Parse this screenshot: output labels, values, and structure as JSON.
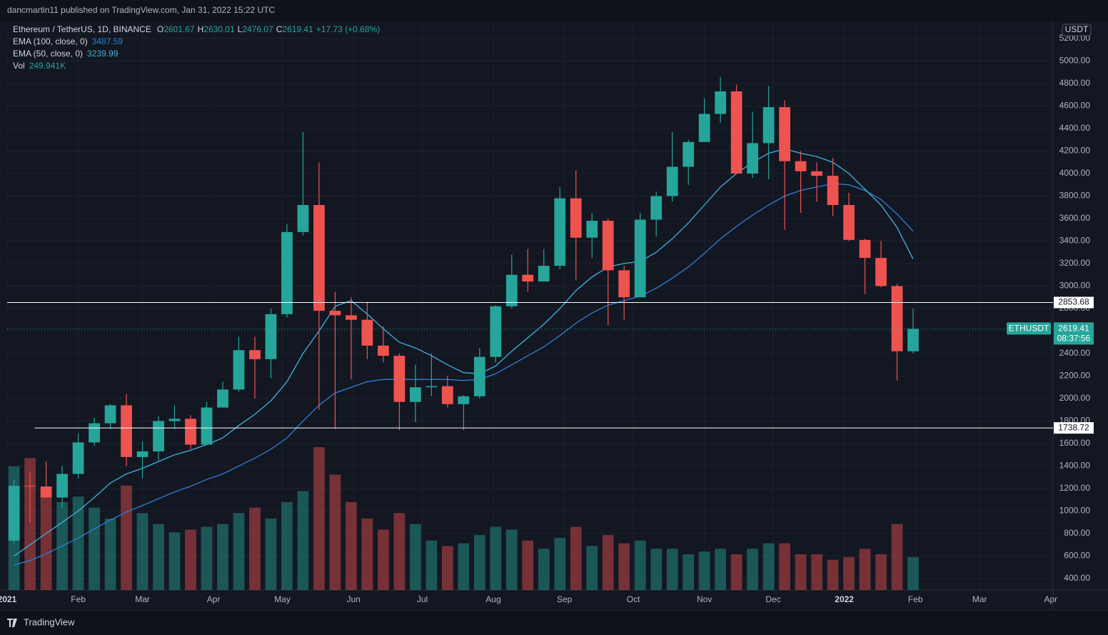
{
  "header": {
    "published": "dancmartin11 published on TradingView.com, Jan 31, 2022 15:22 UTC"
  },
  "footer": {
    "brand": "TradingView"
  },
  "chart_data": {
    "type": "candlestick",
    "title": "Ethereum / TetherUS, 1D, BINANCE",
    "ohlc_legend": [
      {
        "label": "O",
        "value": "2601.67"
      },
      {
        "label": "H",
        "value": "2630.01"
      },
      {
        "label": "L",
        "value": "2476.07"
      },
      {
        "label": "C",
        "value": "2619.41"
      }
    ],
    "change": "+17.73 (+0.68%)",
    "x": [
      3,
      10,
      17,
      24,
      31,
      38,
      45,
      52,
      59,
      66,
      73,
      80,
      87,
      94,
      101,
      108,
      115,
      122,
      129,
      136,
      143,
      150,
      157,
      164,
      171,
      178,
      185,
      192,
      199,
      206,
      213,
      220,
      227,
      234,
      241,
      248,
      255,
      262,
      269,
      276,
      283,
      290,
      297,
      304,
      311,
      318,
      325,
      332,
      339,
      346,
      353,
      360,
      367,
      374,
      381,
      388,
      395
    ],
    "open": [
      737,
      1224,
      1218,
      1120,
      1330,
      1610,
      1780,
      1940,
      1480,
      1530,
      1800,
      1820,
      1590,
      1920,
      2080,
      2430,
      2350,
      2750,
      3480,
      3720,
      2780,
      2740,
      2700,
      2470,
      2380,
      1970,
      2100,
      2110,
      1950,
      2020,
      2370,
      2820,
      3100,
      3040,
      3180,
      3780,
      3430,
      3580,
      3140,
      2900,
      3590,
      3800,
      4060,
      4280,
      4530,
      4730,
      4000,
      4270,
      4590,
      4110,
      4020,
      3980,
      3720,
      3410,
      3250,
      3000,
      2420
    ],
    "high": [
      1280,
      1350,
      1440,
      1400,
      1690,
      1830,
      1950,
      2040,
      1620,
      1840,
      1940,
      1850,
      1970,
      2150,
      2550,
      2550,
      2800,
      3550,
      4370,
      4100,
      2950,
      2900,
      2860,
      2640,
      2400,
      2300,
      2400,
      2200,
      2030,
      2450,
      2830,
      3280,
      3330,
      3330,
      3880,
      4030,
      3650,
      3600,
      3180,
      3650,
      3840,
      4370,
      4300,
      4670,
      4860,
      4790,
      4550,
      4780,
      4650,
      4200,
      4100,
      4140,
      3830,
      3420,
      3400,
      3020,
      2800
    ],
    "low": [
      714,
      900,
      1170,
      1030,
      1290,
      1580,
      1730,
      1400,
      1290,
      1450,
      1730,
      1550,
      1590,
      1920,
      2060,
      2000,
      2180,
      2720,
      3450,
      1900,
      1730,
      2170,
      2350,
      2320,
      1720,
      1790,
      2020,
      1920,
      1720,
      2000,
      2320,
      2800,
      2950,
      3060,
      3150,
      3050,
      3250,
      2650,
      2700,
      2900,
      3440,
      3750,
      3900,
      4280,
      4450,
      4000,
      3960,
      3950,
      3500,
      3650,
      3750,
      3620,
      3400,
      2930,
      2990,
      2160,
      2400
    ],
    "close": [
      1224,
      1218,
      1120,
      1330,
      1610,
      1780,
      1940,
      1480,
      1530,
      1800,
      1820,
      1590,
      1920,
      2080,
      2430,
      2350,
      2750,
      3480,
      3720,
      2780,
      2740,
      2700,
      2470,
      2380,
      1970,
      2100,
      2110,
      1950,
      2020,
      2370,
      2820,
      3100,
      3040,
      3180,
      3780,
      3430,
      3580,
      3140,
      2900,
      3590,
      3800,
      4060,
      4280,
      4530,
      4730,
      4000,
      4270,
      4590,
      4110,
      4020,
      3980,
      3720,
      3410,
      3250,
      3000,
      2420,
      2619.41
    ],
    "up_color": "#26a69a",
    "down_color": "#ef5350",
    "series": [
      {
        "name": "EMA (100, close, 0)",
        "color": "#2f7fd8",
        "values": [
          520,
          560,
          620,
          690,
          760,
          840,
          920,
          990,
          1050,
          1110,
          1170,
          1220,
          1280,
          1330,
          1400,
          1470,
          1550,
          1650,
          1800,
          1940,
          2050,
          2100,
          2150,
          2170,
          2170,
          2170,
          2170,
          2170,
          2160,
          2170,
          2220,
          2300,
          2380,
          2460,
          2560,
          2670,
          2760,
          2830,
          2870,
          2910,
          2980,
          3070,
          3170,
          3290,
          3420,
          3530,
          3630,
          3720,
          3800,
          3850,
          3880,
          3910,
          3900,
          3850,
          3770,
          3640,
          3487.59
        ]
      },
      {
        "name": "EMA (50, close, 0)",
        "color": "#3fb4dc",
        "values": [
          600,
          700,
          800,
          900,
          1000,
          1120,
          1250,
          1330,
          1380,
          1440,
          1500,
          1540,
          1590,
          1650,
          1760,
          1860,
          1980,
          2150,
          2400,
          2600,
          2820,
          2870,
          2750,
          2620,
          2500,
          2450,
          2380,
          2300,
          2230,
          2220,
          2290,
          2420,
          2540,
          2660,
          2800,
          2960,
          3080,
          3170,
          3200,
          3220,
          3300,
          3420,
          3560,
          3720,
          3880,
          4000,
          4100,
          4180,
          4220,
          4180,
          4150,
          4100,
          4000,
          3860,
          3720,
          3520,
          3239.99
        ]
      }
    ],
    "volume": {
      "name": "Vol",
      "last": "249.941K",
      "values": [
        4500,
        4800,
        3600,
        3200,
        3400,
        3000,
        2600,
        3800,
        2800,
        2400,
        2100,
        2200,
        2300,
        2400,
        2800,
        3000,
        2600,
        3200,
        3600,
        5200,
        4200,
        3200,
        2600,
        2200,
        2800,
        2400,
        1800,
        1600,
        1700,
        2000,
        2300,
        2200,
        1800,
        1500,
        1900,
        2300,
        1600,
        2000,
        1700,
        1800,
        1500,
        1500,
        1300,
        1400,
        1500,
        1300,
        1500,
        1700,
        1700,
        1300,
        1300,
        1100,
        1200,
        1500,
        1300,
        2400,
        1200
      ]
    },
    "currency": "USDT",
    "symbol": "ETHUSDT",
    "countdown": "08:37:56",
    "hlines": [
      {
        "value": 2853.68,
        "from": 0
      },
      {
        "value": 1738.72,
        "from": 12
      }
    ],
    "xlim": [
      0,
      456
    ],
    "xticks": [
      {
        "value": 0,
        "label": "2021"
      },
      {
        "value": 31,
        "label": "Feb"
      },
      {
        "value": 59,
        "label": "Mar"
      },
      {
        "value": 90,
        "label": "Apr"
      },
      {
        "value": 120,
        "label": "May"
      },
      {
        "value": 151,
        "label": "Jun"
      },
      {
        "value": 181,
        "label": "Jul"
      },
      {
        "value": 212,
        "label": "Aug"
      },
      {
        "value": 243,
        "label": "Sep"
      },
      {
        "value": 273,
        "label": "Oct"
      },
      {
        "value": 304,
        "label": "Nov"
      },
      {
        "value": 334,
        "label": "Dec"
      },
      {
        "value": 365,
        "label": "2022"
      },
      {
        "value": 396,
        "label": "Feb"
      },
      {
        "value": 424,
        "label": "Mar"
      },
      {
        "value": 455,
        "label": "Apr"
      }
    ],
    "ylim": [
      298,
      5352
    ],
    "yticks": [
      {
        "value": 400,
        "label": "400.00"
      },
      {
        "value": 600,
        "label": "600.00"
      },
      {
        "value": 800,
        "label": "800.00"
      },
      {
        "value": 1000,
        "label": "1000.00"
      },
      {
        "value": 1200,
        "label": "1200.00"
      },
      {
        "value": 1400,
        "label": "1400.00"
      },
      {
        "value": 1600,
        "label": "1600.00"
      },
      {
        "value": 1800,
        "label": "1800.00"
      },
      {
        "value": 2000,
        "label": "2000.00"
      },
      {
        "value": 2200,
        "label": "2200.00"
      },
      {
        "value": 2400,
        "label": "2400.00"
      },
      {
        "value": 2600,
        "label": "2600.00"
      },
      {
        "value": 2800,
        "label": "2800.00"
      },
      {
        "value": 3000,
        "label": "3000.00"
      },
      {
        "value": 3200,
        "label": "3200.00"
      },
      {
        "value": 3400,
        "label": "3400.00"
      },
      {
        "value": 3600,
        "label": "3600.00"
      },
      {
        "value": 3800,
        "label": "3800.00"
      },
      {
        "value": 4000,
        "label": "4000.00"
      },
      {
        "value": 4200,
        "label": "4200.00"
      },
      {
        "value": 4400,
        "label": "4400.00"
      },
      {
        "value": 4600,
        "label": "4600.00"
      },
      {
        "value": 4800,
        "label": "4800.00"
      },
      {
        "value": 5000,
        "label": "5000.00"
      },
      {
        "value": 5200,
        "label": "5200.00"
      }
    ],
    "grid": true
  }
}
